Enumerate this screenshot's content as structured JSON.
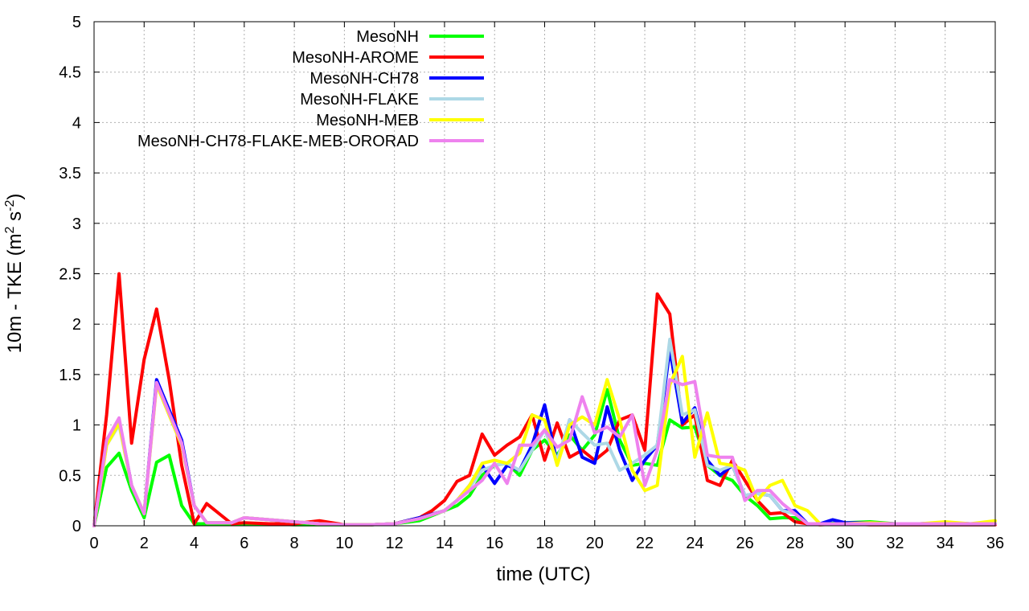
{
  "chart_data": {
    "type": "line",
    "title": "",
    "xlabel": "time (UTC)",
    "ylabel_parts": {
      "main": "10m - TKE (m",
      "sup1": "2",
      "mid": " s",
      "sup2": "-2",
      "end": ")"
    },
    "xlim": [
      0,
      36
    ],
    "ylim": [
      0,
      5
    ],
    "xticks": [
      "0",
      "2",
      "4",
      "6",
      "8",
      "10",
      "12",
      "14",
      "16",
      "18",
      "20",
      "22",
      "24",
      "26",
      "28",
      "30",
      "32",
      "34",
      "36"
    ],
    "yticks": [
      "0",
      "0.5",
      "1",
      "1.5",
      "2",
      "2.5",
      "3",
      "3.5",
      "4",
      "4.5",
      "5"
    ],
    "grid": true,
    "legend_position": "top-left",
    "series": [
      {
        "name": "MesoNH",
        "color": "#00ff00",
        "x": [
          0,
          0.5,
          1,
          1.5,
          2,
          2.5,
          3,
          3.5,
          4,
          4.5,
          5,
          5.5,
          6,
          7,
          8,
          9,
          10,
          11,
          12,
          13,
          14,
          14.5,
          15,
          15.5,
          16,
          16.5,
          17,
          17.5,
          18,
          18.5,
          19,
          19.5,
          20,
          20.5,
          21,
          21.5,
          22,
          22.5,
          23,
          23.5,
          24,
          24.5,
          25,
          25.5,
          26,
          26.5,
          27,
          27.5,
          28,
          28.5,
          29,
          30,
          31,
          32,
          33,
          34,
          35,
          36
        ],
        "values": [
          0,
          0.58,
          0.72,
          0.35,
          0.08,
          0.63,
          0.7,
          0.2,
          0.02,
          0.02,
          0.02,
          0.02,
          0.02,
          0.02,
          0.01,
          0.01,
          0.01,
          0.01,
          0.02,
          0.05,
          0.15,
          0.2,
          0.3,
          0.5,
          0.6,
          0.62,
          0.5,
          0.75,
          0.85,
          0.7,
          0.9,
          0.75,
          0.9,
          1.35,
          0.85,
          0.6,
          0.62,
          0.6,
          1.05,
          0.97,
          0.98,
          0.6,
          0.5,
          0.45,
          0.3,
          0.2,
          0.07,
          0.08,
          0.08,
          0.02,
          0.02,
          0.03,
          0.04,
          0.02,
          0.02,
          0.02,
          0.02,
          0.02
        ]
      },
      {
        "name": "MesoNH-AROME",
        "color": "#ff0000",
        "x": [
          0,
          0.5,
          1,
          1.5,
          2,
          2.5,
          3,
          3.5,
          4,
          4.5,
          5,
          5.5,
          6,
          7,
          8,
          9,
          10,
          11,
          12,
          13,
          13.5,
          14,
          14.5,
          15,
          15.5,
          16,
          16.5,
          17,
          17.5,
          18,
          18.5,
          19,
          19.5,
          20,
          20.5,
          21,
          21.5,
          22,
          22.5,
          23,
          23.5,
          24,
          24.5,
          25,
          25.5,
          26,
          26.5,
          27,
          27.5,
          28,
          28.5,
          29,
          30,
          31,
          32,
          33,
          34,
          35,
          36
        ],
        "values": [
          0,
          1.1,
          2.5,
          0.82,
          1.65,
          2.15,
          1.45,
          0.6,
          0.02,
          0.22,
          0.12,
          0.02,
          0.03,
          0.02,
          0.02,
          0.05,
          0.01,
          0.01,
          0.02,
          0.08,
          0.15,
          0.25,
          0.44,
          0.5,
          0.91,
          0.7,
          0.8,
          0.88,
          1.1,
          0.65,
          1.02,
          0.68,
          0.75,
          0.65,
          0.75,
          1.05,
          1.1,
          0.75,
          2.3,
          2.1,
          1.0,
          1.1,
          0.45,
          0.4,
          0.65,
          0.45,
          0.25,
          0.12,
          0.13,
          0.04,
          0.02,
          0.01,
          0.02,
          0.01,
          0.01,
          0.01,
          0.01,
          0.01,
          0.01
        ]
      },
      {
        "name": "MesoNH-CH78",
        "color": "#0000ff",
        "x": [
          0,
          0.5,
          1,
          1.5,
          2,
          2.5,
          3,
          3.5,
          4,
          4.5,
          5,
          5.5,
          6,
          7,
          8,
          9,
          10,
          11,
          12,
          13,
          14,
          14.5,
          15,
          15.5,
          16,
          16.5,
          17,
          17.5,
          18,
          18.5,
          19,
          19.5,
          20,
          20.5,
          21,
          21.5,
          22,
          22.5,
          23,
          23.5,
          24,
          24.5,
          25,
          25.5,
          26,
          26.5,
          27,
          27.5,
          28,
          28.5,
          29,
          29.5,
          30,
          31,
          32,
          33,
          34,
          35,
          36
        ],
        "values": [
          0,
          0.85,
          1.05,
          0.4,
          0.12,
          1.45,
          1.15,
          0.85,
          0.2,
          0.03,
          0.03,
          0.03,
          0.08,
          0.06,
          0.04,
          0.02,
          0.01,
          0.01,
          0.02,
          0.08,
          0.15,
          0.25,
          0.4,
          0.6,
          0.42,
          0.6,
          0.55,
          0.8,
          1.2,
          0.62,
          1.05,
          0.68,
          0.62,
          1.18,
          0.75,
          0.45,
          0.65,
          0.8,
          1.75,
          1.02,
          1.17,
          0.65,
          0.5,
          0.6,
          0.3,
          0.32,
          0.3,
          0.15,
          0.15,
          0.02,
          0.02,
          0.06,
          0.03,
          0.03,
          0.02,
          0.02,
          0.03,
          0.02,
          0.02
        ]
      },
      {
        "name": "MesoNH-FLAKE",
        "color": "#add8e6",
        "x": [
          0,
          0.5,
          1,
          1.5,
          2,
          2.5,
          3,
          3.5,
          4,
          4.5,
          5,
          5.5,
          6,
          7,
          8,
          9,
          10,
          11,
          12,
          13,
          14,
          14.5,
          15,
          15.5,
          16,
          16.5,
          17,
          17.5,
          18,
          18.5,
          19,
          19.5,
          20,
          20.5,
          21,
          21.5,
          22,
          22.5,
          23,
          23.5,
          24,
          24.5,
          25,
          25.5,
          26,
          26.5,
          27,
          27.5,
          28,
          28.5,
          29,
          30,
          31,
          32,
          33,
          34,
          35,
          36
        ],
        "values": [
          0,
          0.8,
          1.0,
          0.4,
          0.12,
          1.4,
          1.1,
          0.8,
          0.2,
          0.03,
          0.03,
          0.03,
          0.08,
          0.06,
          0.04,
          0.02,
          0.01,
          0.01,
          0.02,
          0.07,
          0.15,
          0.25,
          0.38,
          0.55,
          0.6,
          0.62,
          0.55,
          0.75,
          0.95,
          0.65,
          1.05,
          0.92,
          0.8,
          0.82,
          0.55,
          0.62,
          0.7,
          0.8,
          1.85,
          1.1,
          1.15,
          0.6,
          0.55,
          0.6,
          0.3,
          0.32,
          0.3,
          0.15,
          0.12,
          0.02,
          0.02,
          0.02,
          0.02,
          0.02,
          0.02,
          0.02,
          0.02,
          0.02
        ]
      },
      {
        "name": "MesoNH-MEB",
        "color": "#ffff00",
        "x": [
          0,
          0.5,
          1,
          1.5,
          2,
          2.5,
          3,
          3.5,
          4,
          4.5,
          5,
          5.5,
          6,
          7,
          8,
          9,
          10,
          11,
          12,
          13,
          14,
          14.5,
          15,
          15.5,
          16,
          16.5,
          17,
          17.5,
          18,
          18.5,
          19,
          19.5,
          20,
          20.5,
          21,
          21.5,
          22,
          22.5,
          23,
          23.5,
          24,
          24.5,
          25,
          25.5,
          26,
          26.5,
          27,
          27.5,
          28,
          28.5,
          29,
          30,
          31,
          32,
          33,
          34,
          35,
          36
        ],
        "values": [
          0,
          0.8,
          1.02,
          0.4,
          0.12,
          1.4,
          1.1,
          0.8,
          0.2,
          0.03,
          0.03,
          0.03,
          0.08,
          0.06,
          0.04,
          0.02,
          0.01,
          0.01,
          0.02,
          0.07,
          0.15,
          0.25,
          0.4,
          0.62,
          0.65,
          0.62,
          0.72,
          1.1,
          1.05,
          0.6,
          1.0,
          1.08,
          1.0,
          1.45,
          1.05,
          0.55,
          0.35,
          0.4,
          1.4,
          1.68,
          0.68,
          1.12,
          0.62,
          0.6,
          0.55,
          0.25,
          0.4,
          0.45,
          0.2,
          0.15,
          0.02,
          0.02,
          0.03,
          0.02,
          0.02,
          0.04,
          0.02,
          0.05
        ]
      },
      {
        "name": "MesoNH-CH78-FLAKE-MEB-ORORAD",
        "color": "#ee82ee",
        "x": [
          0,
          0.5,
          1,
          1.5,
          2,
          2.5,
          3,
          3.5,
          4,
          4.5,
          5,
          5.5,
          6,
          7,
          8,
          9,
          10,
          11,
          12,
          13,
          14,
          14.5,
          15,
          15.5,
          16,
          16.5,
          17,
          17.5,
          18,
          18.5,
          19,
          19.5,
          20,
          20.5,
          21,
          21.5,
          22,
          22.5,
          23,
          23.5,
          24,
          24.5,
          25,
          25.5,
          26,
          26.5,
          27,
          27.5,
          28,
          28.5,
          29,
          30,
          31,
          32,
          33,
          34,
          35,
          36
        ],
        "values": [
          0,
          0.85,
          1.07,
          0.4,
          0.12,
          1.42,
          1.12,
          0.82,
          0.2,
          0.03,
          0.03,
          0.03,
          0.08,
          0.06,
          0.04,
          0.02,
          0.01,
          0.01,
          0.02,
          0.07,
          0.15,
          0.25,
          0.35,
          0.45,
          0.62,
          0.42,
          0.8,
          0.8,
          0.95,
          0.78,
          0.85,
          1.28,
          0.92,
          0.98,
          0.88,
          1.1,
          0.4,
          0.75,
          1.45,
          1.4,
          1.43,
          0.7,
          0.68,
          0.68,
          0.25,
          0.35,
          0.35,
          0.22,
          0.12,
          0.02,
          0.02,
          0.02,
          0.02,
          0.02,
          0.02,
          0.02,
          0.02,
          0.02
        ]
      }
    ]
  }
}
